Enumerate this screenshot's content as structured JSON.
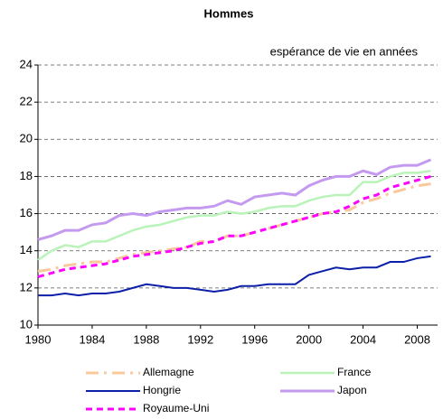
{
  "chart_data": {
    "type": "line",
    "title": "Hommes",
    "subtitle": "espérance de vie en années",
    "x": [
      1980,
      1981,
      1982,
      1983,
      1984,
      1985,
      1986,
      1987,
      1988,
      1989,
      1990,
      1991,
      1992,
      1993,
      1994,
      1995,
      1996,
      1997,
      1998,
      1999,
      2000,
      2001,
      2002,
      2003,
      2004,
      2005,
      2006,
      2007,
      2008,
      2009
    ],
    "xlim": [
      1980,
      2009.5
    ],
    "xticks": [
      1980,
      1984,
      1988,
      1992,
      1996,
      2000,
      2004,
      2008
    ],
    "ylim": [
      10,
      24
    ],
    "yticks": [
      10,
      12,
      14,
      16,
      18,
      20,
      22,
      24
    ],
    "grid": true,
    "series": [
      {
        "name": "Allemagne",
        "color": "#f9c89b",
        "dash": "14 6 3 6",
        "width": 3,
        "values": [
          12.9,
          13.0,
          13.2,
          13.3,
          13.4,
          13.4,
          13.6,
          13.8,
          13.9,
          14.0,
          14.1,
          14.2,
          14.5,
          14.5,
          14.8,
          14.8,
          15.0,
          15.2,
          15.4,
          15.6,
          15.8,
          16.0,
          16.1,
          16.2,
          16.6,
          16.8,
          17.1,
          17.3,
          17.5,
          17.6
        ]
      },
      {
        "name": "France",
        "color": "#b9f3b9",
        "dash": "",
        "width": 2.5,
        "values": [
          13.5,
          14.0,
          14.3,
          14.2,
          14.5,
          14.5,
          14.8,
          15.1,
          15.3,
          15.4,
          15.6,
          15.8,
          15.9,
          15.9,
          16.1,
          16.0,
          16.1,
          16.3,
          16.4,
          16.4,
          16.7,
          16.9,
          17.0,
          17.0,
          17.7,
          17.7,
          18.0,
          18.2,
          18.2,
          18.3
        ]
      },
      {
        "name": "Hongrie",
        "color": "#0b1fa8",
        "dash": "",
        "width": 2,
        "values": [
          11.6,
          11.6,
          11.7,
          11.6,
          11.7,
          11.7,
          11.8,
          12.0,
          12.2,
          12.1,
          12.0,
          12.0,
          11.9,
          11.8,
          11.9,
          12.1,
          12.1,
          12.2,
          12.2,
          12.2,
          12.7,
          12.9,
          13.1,
          13.0,
          13.1,
          13.1,
          13.4,
          13.4,
          13.6,
          13.7
        ]
      },
      {
        "name": "Japon",
        "color": "#c49af0",
        "dash": "",
        "width": 3,
        "values": [
          14.6,
          14.8,
          15.1,
          15.1,
          15.4,
          15.5,
          15.9,
          16.0,
          15.9,
          16.1,
          16.2,
          16.3,
          16.3,
          16.4,
          16.7,
          16.5,
          16.9,
          17.0,
          17.1,
          17.0,
          17.5,
          17.8,
          18.0,
          18.0,
          18.3,
          18.1,
          18.5,
          18.6,
          18.6,
          18.9
        ]
      },
      {
        "name": "Royaume-Uni",
        "color": "#ff00ff",
        "dash": "7 5",
        "width": 3,
        "values": [
          12.6,
          12.8,
          13.0,
          13.1,
          13.2,
          13.3,
          13.5,
          13.7,
          13.8,
          13.9,
          14.0,
          14.2,
          14.4,
          14.5,
          14.8,
          14.8,
          15.0,
          15.2,
          15.4,
          15.6,
          15.8,
          16.0,
          16.1,
          16.4,
          16.8,
          17.0,
          17.4,
          17.6,
          17.8,
          18.0
        ]
      }
    ]
  }
}
